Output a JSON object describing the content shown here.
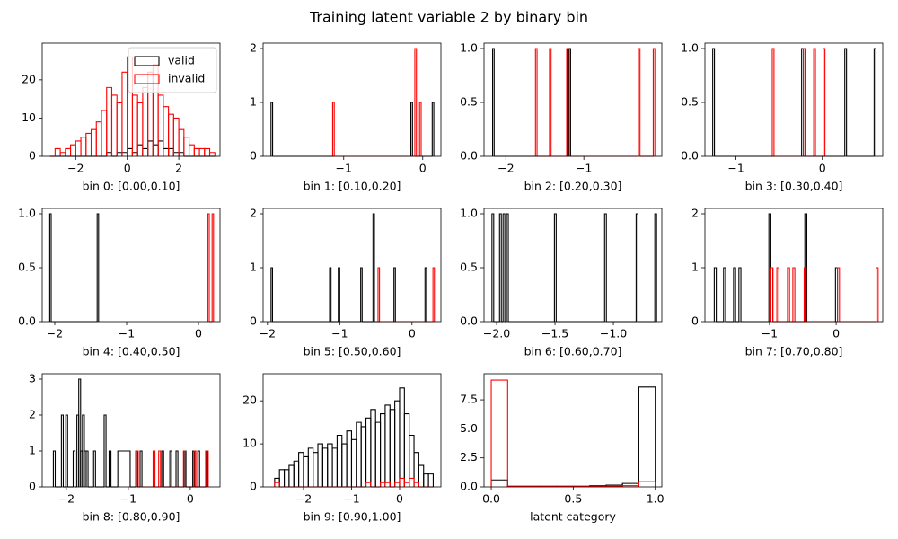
{
  "title": "Training latent variable 2 by binary bin",
  "chart_data": [
    {
      "type": "histogram",
      "xlabel": "bin 0: [0.00,0.10]",
      "legend": "upper right",
      "xlim": [
        -3.3,
        3.6
      ],
      "ylim": [
        0,
        29.6
      ],
      "xticks": [
        {
          "value": -2,
          "label": "−2"
        },
        0,
        2
      ],
      "yticks": [
        0,
        10,
        20
      ],
      "series": [
        {
          "name": "valid",
          "color": "#000000",
          "bins": [
            -3.0,
            -2.8,
            -2.6,
            -2.4,
            -2.2,
            -2.0,
            -1.8,
            -1.6,
            -1.4,
            -1.2,
            -1.0,
            -0.8,
            -0.6,
            -0.4,
            -0.2,
            0.0,
            0.2,
            0.4,
            0.6,
            0.8,
            1.0,
            1.2,
            1.4,
            1.6,
            1.8,
            2.0,
            2.2,
            2.4,
            2.6,
            2.8,
            3.0,
            3.2,
            3.4
          ],
          "values": [
            0,
            0,
            0,
            0,
            0,
            0,
            0,
            0,
            0,
            0,
            0,
            1,
            0,
            1,
            1,
            2,
            1,
            3,
            2,
            4,
            3,
            4,
            2,
            2,
            1,
            1,
            0,
            0,
            0,
            0,
            0,
            0
          ]
        },
        {
          "name": "invalid",
          "color": "#ff0000",
          "bins": [
            -3.0,
            -2.8,
            -2.6,
            -2.4,
            -2.2,
            -2.0,
            -1.8,
            -1.6,
            -1.4,
            -1.2,
            -1.0,
            -0.8,
            -0.6,
            -0.4,
            -0.2,
            0.0,
            0.2,
            0.4,
            0.6,
            0.8,
            1.0,
            1.2,
            1.4,
            1.6,
            1.8,
            2.0,
            2.2,
            2.4,
            2.6,
            2.8,
            3.0,
            3.2,
            3.4
          ],
          "values": [
            0,
            2,
            1,
            2,
            3,
            4,
            5,
            6,
            7,
            9,
            12,
            18,
            16,
            14,
            22,
            26,
            16,
            14,
            18,
            22,
            24,
            16,
            13,
            11,
            10,
            7,
            5,
            3,
            2,
            2,
            2,
            1
          ]
        }
      ]
    },
    {
      "type": "histogram",
      "xlabel": "bin 1: [0.10,0.20]",
      "xlim": [
        -2.02,
        0.23
      ],
      "ylim": [
        0,
        2.1
      ],
      "xticks": [
        {
          "value": -1,
          "label": "−1"
        },
        0
      ],
      "yticks": [
        0,
        1,
        2
      ],
      "series": [
        {
          "color": "#000000",
          "bins": [
            -1.92,
            -1.9,
            -0.15,
            -0.13,
            0.12,
            0.14
          ],
          "values": [
            1,
            0,
            1,
            0,
            1
          ]
        },
        {
          "color": "#ff0000",
          "bins": [
            -1.14,
            -1.12,
            -0.1,
            -0.08,
            -0.04,
            -0.02
          ],
          "values": [
            1,
            0,
            2,
            0,
            1
          ]
        }
      ]
    },
    {
      "type": "histogram",
      "xlabel": "bin 2: [0.20,0.30]",
      "xlim": [
        -2.28,
        0.0
      ],
      "ylim": [
        0,
        1.05
      ],
      "xticks": [
        {
          "value": -2,
          "label": "−2"
        },
        {
          "value": -1,
          "label": "−1"
        }
      ],
      "yticks": [
        {
          "value": 0,
          "label": "0.0"
        },
        0.5,
        {
          "value": 1,
          "label": "1.0"
        }
      ],
      "series": [
        {
          "color": "#000000",
          "bins": [
            -2.17,
            -2.15,
            -1.21,
            -1.19,
            -1.17
          ],
          "values": [
            1,
            0,
            1,
            1
          ]
        },
        {
          "color": "#ff0000",
          "bins": [
            -1.62,
            -1.6,
            -1.44,
            -1.42,
            -1.22,
            -1.2,
            -0.3,
            -0.28,
            -0.11,
            -0.09
          ],
          "values": [
            1,
            0,
            1,
            0,
            1,
            0,
            1,
            0,
            1
          ]
        }
      ]
    },
    {
      "type": "histogram",
      "xlabel": "bin 3: [0.30,0.40]",
      "xlim": [
        -1.36,
        0.7
      ],
      "ylim": [
        0,
        1.05
      ],
      "xticks": [
        {
          "value": -1,
          "label": "−1"
        },
        0
      ],
      "yticks": [
        {
          "value": 0,
          "label": "0.0"
        },
        0.5,
        {
          "value": 1,
          "label": "1.0"
        }
      ],
      "series": [
        {
          "color": "#000000",
          "bins": [
            -1.27,
            -1.25,
            -0.24,
            -0.22,
            0.26,
            0.28,
            0.6,
            0.62
          ],
          "values": [
            1,
            0,
            1,
            0,
            1,
            0,
            1
          ]
        },
        {
          "color": "#ff0000",
          "bins": [
            -0.58,
            -0.56,
            -0.22,
            -0.2,
            -0.1,
            -0.08,
            0.01,
            0.03
          ],
          "values": [
            1,
            0,
            1,
            0,
            1,
            0,
            1
          ]
        }
      ]
    },
    {
      "type": "histogram",
      "xlabel": "bin 4: [0.40,0.50]",
      "xlim": [
        -2.175,
        0.3
      ],
      "ylim": [
        0,
        1.05
      ],
      "xticks": [
        {
          "value": -2,
          "label": "−2"
        },
        {
          "value": -1,
          "label": "−1"
        },
        0
      ],
      "yticks": [
        {
          "value": 0,
          "label": "0.0"
        },
        0.5,
        {
          "value": 1,
          "label": "1.0"
        }
      ],
      "series": [
        {
          "color": "#000000",
          "bins": [
            -2.07,
            -2.05,
            -1.41,
            -1.39
          ],
          "values": [
            1,
            0,
            1
          ]
        },
        {
          "color": "#ff0000",
          "bins": [
            0.13,
            0.15,
            0.19,
            0.21
          ],
          "values": [
            1,
            0,
            1
          ]
        }
      ]
    },
    {
      "type": "histogram",
      "xlabel": "bin 5: [0.50,0.60]",
      "xlim": [
        -2.06,
        0.4
      ],
      "ylim": [
        0,
        2.1
      ],
      "xticks": [
        {
          "value": -2,
          "label": "−2"
        },
        {
          "value": -1,
          "label": "−1"
        },
        0
      ],
      "yticks": [
        0,
        1,
        2
      ],
      "series": [
        {
          "color": "#000000",
          "bins": [
            -1.95,
            -1.93,
            -1.14,
            -1.12,
            -1.02,
            -1.0,
            -0.71,
            -0.69,
            -0.54,
            -0.52,
            -0.25,
            -0.23,
            0.18,
            0.2
          ],
          "values": [
            1,
            0,
            1,
            0,
            1,
            0,
            1,
            0,
            2,
            0,
            1,
            0,
            1
          ]
        },
        {
          "color": "#ff0000",
          "bins": [
            -0.47,
            -0.45,
            0.29,
            0.31
          ],
          "values": [
            1,
            0,
            1
          ]
        }
      ]
    },
    {
      "type": "histogram",
      "xlabel": "bin 6: [0.60,0.70]",
      "xlim": [
        -2.108,
        -0.585
      ],
      "ylim": [
        0,
        1.05
      ],
      "xticks": [
        {
          "value": -2,
          "label": "−2.0"
        },
        {
          "value": -1.5,
          "label": "−1.5"
        },
        {
          "value": -1,
          "label": "−1.0"
        }
      ],
      "yticks": [
        {
          "value": 0,
          "label": "0.0"
        },
        0.5,
        {
          "value": 1,
          "label": "1.0"
        }
      ],
      "series": [
        {
          "color": "#000000",
          "bins": [
            -2.04,
            -2.025,
            -1.975,
            -1.96,
            -1.945,
            -1.93,
            -1.915,
            -1.9,
            -1.505,
            -1.49,
            -1.075,
            -1.06,
            -0.805,
            -0.79,
            -0.645,
            -0.63
          ],
          "values": [
            1,
            0,
            1,
            0,
            1,
            0,
            1,
            0,
            1,
            0,
            1,
            0,
            1,
            0,
            1
          ]
        }
      ]
    },
    {
      "type": "histogram",
      "xlabel": "bin 7: [0.70,0.80]",
      "xlim": [
        -1.97,
        0.7
      ],
      "ylim": [
        0,
        2.1
      ],
      "xticks": [
        {
          "value": -1,
          "label": "−1"
        },
        0
      ],
      "yticks": [
        0,
        1,
        2
      ],
      "series": [
        {
          "color": "#000000",
          "bins": [
            -1.83,
            -1.8,
            -1.69,
            -1.66,
            -1.54,
            -1.51,
            -1.46,
            -1.43,
            -1.01,
            -0.98,
            -0.95,
            -0.47,
            -0.44,
            -0.01,
            0.02
          ],
          "values": [
            1,
            0,
            1,
            0,
            1,
            0,
            1,
            0,
            2,
            1,
            0,
            2,
            0,
            1
          ]
        },
        {
          "color": "#ff0000",
          "bins": [
            -0.98,
            -0.95,
            -0.89,
            -0.86,
            -0.73,
            -0.7,
            -0.65,
            -0.62,
            -0.48,
            -0.45,
            0.02,
            0.05,
            0.6,
            0.63
          ],
          "values": [
            1,
            0,
            1,
            0,
            1,
            0,
            1,
            0,
            1,
            0,
            1,
            0,
            1
          ]
        }
      ]
    },
    {
      "type": "histogram",
      "xlabel": "bin 8: [0.80,0.90]",
      "xlim": [
        -2.39,
        0.48
      ],
      "ylim": [
        0,
        3.15
      ],
      "xticks": [
        {
          "value": -2,
          "label": "−2"
        },
        {
          "value": -1,
          "label": "−1"
        },
        0
      ],
      "yticks": [
        0,
        1,
        2,
        3
      ],
      "series": [
        {
          "color": "#000000",
          "bins": [
            -2.21,
            -2.18,
            -2.08,
            -2.05,
            -2.01,
            -1.98,
            -1.89,
            -1.86,
            -1.83,
            -1.8,
            -1.77,
            -1.74,
            -1.71,
            -1.68,
            -1.65,
            -1.56,
            -1.53,
            -1.39,
            -1.36,
            -1.31,
            -1.28,
            -1.17,
            -0.97,
            -0.88,
            -0.85,
            -0.81,
            -0.78,
            -0.46,
            -0.43,
            -0.33,
            -0.3,
            -0.23,
            -0.2,
            -0.1,
            -0.07,
            0.04,
            0.07,
            0.12,
            0.15,
            0.25,
            0.28
          ],
          "values": [
            1,
            0,
            2,
            0,
            2,
            0,
            1,
            0,
            2,
            3,
            1,
            2,
            1,
            1,
            0,
            1,
            0,
            2,
            0,
            1,
            0,
            1,
            0,
            1,
            0,
            1,
            0,
            1,
            0,
            1,
            0,
            1,
            0,
            1,
            0,
            1,
            0,
            1,
            0,
            1
          ]
        },
        {
          "color": "#ff0000",
          "bins": [
            -0.87,
            -0.84,
            -0.6,
            -0.57,
            -0.51,
            -0.48,
            -0.11,
            -0.08,
            0.06,
            0.09,
            0.26,
            0.29
          ],
          "values": [
            1,
            0,
            1,
            0,
            1,
            0,
            1,
            0,
            1,
            0,
            1
          ]
        }
      ]
    },
    {
      "type": "histogram",
      "xlabel": "bin 9: [0.90,1.00]",
      "xlim": [
        -2.84,
        0.86
      ],
      "ylim": [
        0,
        26.3
      ],
      "xticks": [
        {
          "value": -2,
          "label": "−2"
        },
        {
          "value": -1,
          "label": "−1"
        },
        0
      ],
      "yticks": [
        0,
        10,
        20
      ],
      "series": [
        {
          "color": "#000000",
          "bins": [
            -2.6,
            -2.5,
            -2.4,
            -2.3,
            -2.2,
            -2.1,
            -2.0,
            -1.9,
            -1.8,
            -1.7,
            -1.6,
            -1.5,
            -1.4,
            -1.3,
            -1.2,
            -1.1,
            -1.0,
            -0.9,
            -0.8,
            -0.7,
            -0.6,
            -0.5,
            -0.4,
            -0.3,
            -0.2,
            -0.1,
            0.0,
            0.1,
            0.2,
            0.3,
            0.4,
            0.5,
            0.6,
            0.7
          ],
          "values": [
            2,
            4,
            4,
            5,
            6,
            8,
            7,
            9,
            8,
            10,
            9,
            10,
            9,
            12,
            10,
            13,
            11,
            15,
            14,
            16,
            18,
            15,
            17,
            19,
            18,
            20,
            23,
            17,
            12,
            8,
            5,
            3,
            3
          ]
        },
        {
          "color": "#ff0000",
          "bins": [
            -2.6,
            -2.5,
            -2.4,
            -2.3,
            -2.2,
            -2.1,
            -2.0,
            -1.9,
            -1.8,
            -1.7,
            -1.6,
            -1.5,
            -1.4,
            -1.3,
            -1.2,
            -1.1,
            -1.0,
            -0.9,
            -0.8,
            -0.7,
            -0.6,
            -0.5,
            -0.4,
            -0.3,
            -0.2,
            -0.1,
            0.0,
            0.1,
            0.2,
            0.3,
            0.4,
            0.5,
            0.6,
            0.7
          ],
          "values": [
            1,
            0,
            0,
            0,
            0,
            0,
            0,
            0,
            0,
            0,
            0,
            0,
            0,
            0,
            0,
            0,
            0,
            0,
            0,
            1,
            0,
            0,
            1,
            1,
            0,
            1,
            2,
            1,
            2,
            1,
            0,
            0,
            0
          ]
        }
      ]
    },
    {
      "type": "histogram",
      "xlabel": "latent category",
      "xlim": [
        -0.044,
        1.04
      ],
      "ylim": [
        0,
        9.75
      ],
      "xticks": [
        {
          "value": 0,
          "label": "0.0"
        },
        0.5,
        {
          "value": 1,
          "label": "1.0"
        }
      ],
      "yticks": [
        {
          "value": 0,
          "label": "0.0"
        },
        2.5,
        {
          "value": 5,
          "label": "5.0"
        },
        7.5
      ],
      "series": [
        {
          "color": "#000000",
          "bins": [
            0,
            0.1,
            0.2,
            0.3,
            0.4,
            0.5,
            0.6,
            0.7,
            0.8,
            0.9,
            1.0
          ],
          "values": [
            0.6,
            0.05,
            0.05,
            0.05,
            0.05,
            0.05,
            0.1,
            0.15,
            0.3,
            8.6
          ]
        },
        {
          "color": "#ff0000",
          "bins": [
            0,
            0.1,
            0.2,
            0.3,
            0.4,
            0.5,
            0.6,
            0.7,
            0.8,
            0.9,
            1.0
          ],
          "values": [
            9.2,
            0.05,
            0.05,
            0.05,
            0.05,
            0.05,
            0.05,
            0.05,
            0.1,
            0.45
          ]
        }
      ]
    }
  ]
}
